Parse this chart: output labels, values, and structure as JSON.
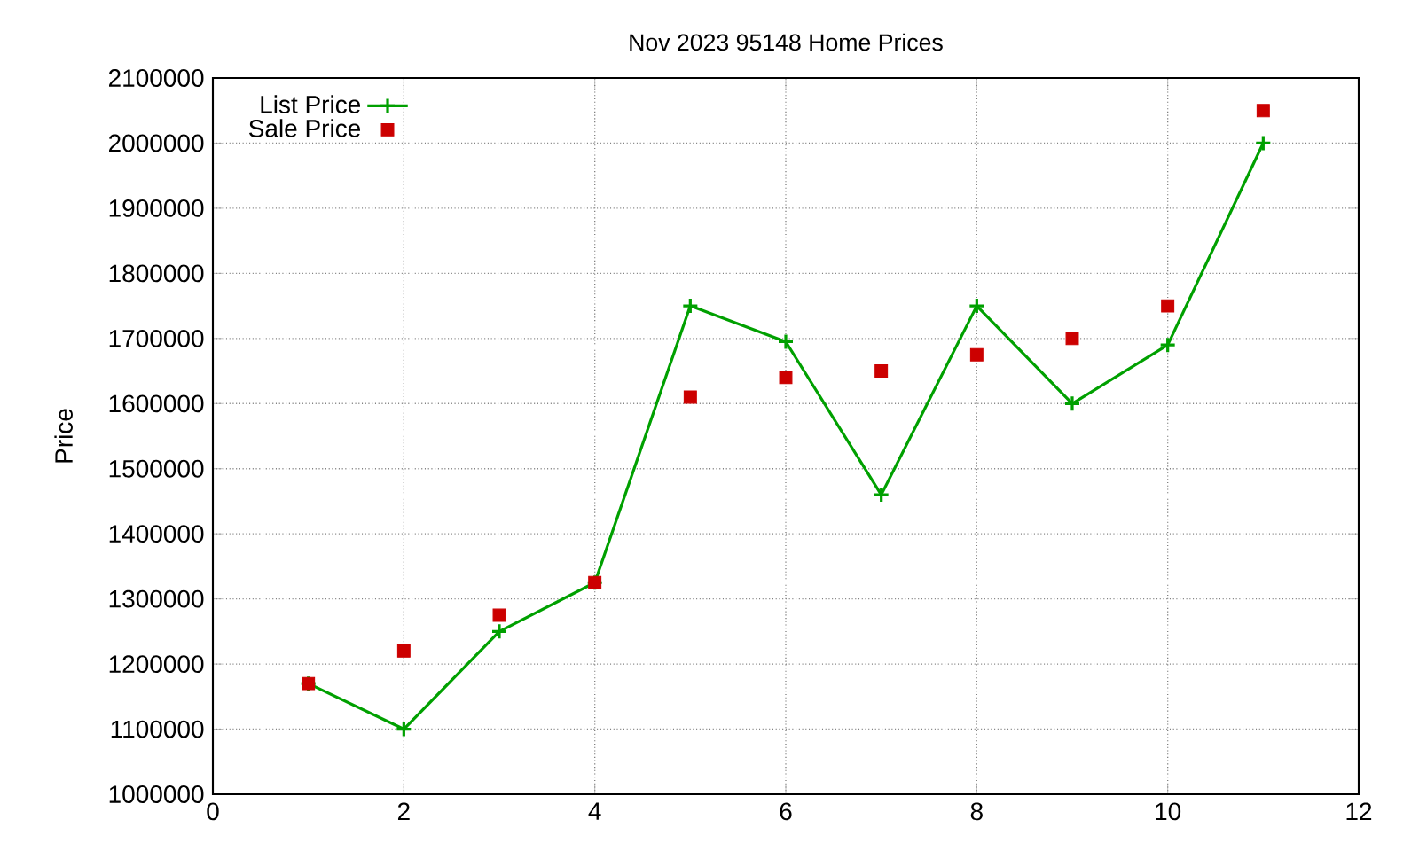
{
  "chart_data": {
    "type": "line",
    "title": "Nov 2023 95148 Home Prices",
    "ylabel": "Price",
    "x": [
      1,
      2,
      3,
      4,
      5,
      6,
      7,
      8,
      9,
      10,
      11
    ],
    "series": [
      {
        "name": "List Price",
        "color": "#00a000",
        "marker": "cross",
        "values": [
          1170000,
          1100000,
          1250000,
          1325000,
          1750000,
          1695000,
          1460000,
          1750000,
          1600000,
          1690000,
          2000000
        ]
      },
      {
        "name": "Sale Price",
        "type": "scatter",
        "color": "#cc0000",
        "marker": "square",
        "values": [
          1170000,
          1220000,
          1275000,
          1325000,
          1610000,
          1640000,
          1650000,
          1675000,
          1700000,
          1750000,
          2050000
        ]
      }
    ],
    "xlim": [
      0,
      12
    ],
    "xticks": [
      0,
      2,
      4,
      6,
      8,
      10,
      12
    ],
    "ylim": [
      1000000,
      2100000
    ],
    "yticks": [
      1000000,
      1100000,
      1200000,
      1300000,
      1400000,
      1500000,
      1600000,
      1700000,
      1800000,
      1900000,
      2000000,
      2100000
    ],
    "grid": true,
    "legend": "top left"
  }
}
